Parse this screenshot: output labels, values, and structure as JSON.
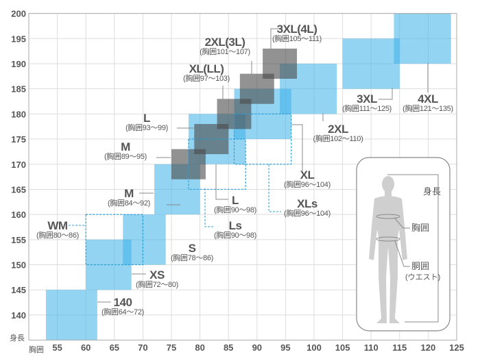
{
  "chart_data": {
    "type": "box-range",
    "xlabel": "胸囲",
    "ylabel": "身長",
    "xlim": [
      50,
      125
    ],
    "ylim": [
      135,
      200
    ],
    "x_ticks": [
      55,
      60,
      65,
      70,
      75,
      80,
      85,
      90,
      95,
      100,
      105,
      110,
      115,
      120,
      125
    ],
    "y_ticks": [
      140,
      145,
      150,
      155,
      160,
      165,
      170,
      175,
      180,
      185,
      190,
      195,
      200
    ],
    "grid": true,
    "colors": {
      "blue": "#3cb0ea",
      "gray": "#4a4a4a",
      "dashed": "#2a9fd6",
      "grid": "#dddddd"
    },
    "boxes": [
      {
        "id": "140",
        "style": "blue",
        "x": [
          53,
          62
        ],
        "y": [
          135,
          145
        ],
        "name": "140",
        "sub": "(胸囲64～72)"
      },
      {
        "id": "XS",
        "style": "blue",
        "x": [
          60,
          68
        ],
        "y": [
          145,
          155
        ],
        "name": "XS",
        "sub": "(胸囲72～80)"
      },
      {
        "id": "S",
        "style": "blue",
        "x": [
          66.5,
          74
        ],
        "y": [
          150,
          160
        ],
        "name": "S",
        "sub": "(胸囲78～86)"
      },
      {
        "id": "M",
        "style": "blue",
        "x": [
          72,
          80
        ],
        "y": [
          160,
          170
        ],
        "name": "M",
        "sub": "(胸囲84～92)"
      },
      {
        "id": "L",
        "style": "blue",
        "x": [
          78,
          88
        ],
        "y": [
          170,
          180
        ],
        "name": "L",
        "sub": "(胸囲90～98)"
      },
      {
        "id": "XL",
        "style": "blue",
        "x": [
          86,
          96
        ],
        "y": [
          175,
          185
        ],
        "name": "XL",
        "sub": "(胸囲96～104)"
      },
      {
        "id": "2XL",
        "style": "blue",
        "x": [
          94,
          104
        ],
        "y": [
          180,
          190
        ],
        "name": "2XL",
        "sub": "(胸囲102～110)"
      },
      {
        "id": "3XL",
        "style": "blue",
        "x": [
          105,
          115
        ],
        "y": [
          185,
          195
        ],
        "name": "3XL",
        "sub": "(胸囲111～125)"
      },
      {
        "id": "4XL",
        "style": "blue",
        "x": [
          114,
          124
        ],
        "y": [
          190,
          200
        ],
        "name": "4XL",
        "sub": "(胸囲121～135)"
      },
      {
        "id": "WM",
        "style": "dashed",
        "x": [
          60,
          70
        ],
        "y": [
          150,
          160
        ],
        "name": "WM",
        "sub": "(胸囲80～86)"
      },
      {
        "id": "Ls",
        "style": "dashed",
        "x": [
          78,
          88
        ],
        "y": [
          165,
          175
        ],
        "name": "Ls",
        "sub": "(胸囲90～98)"
      },
      {
        "id": "XLs",
        "style": "dashed",
        "x": [
          86,
          96
        ],
        "y": [
          170,
          180
        ],
        "name": "XLs",
        "sub": "(胸囲96～104)"
      },
      {
        "id": "jM",
        "style": "gray",
        "x": [
          75,
          81
        ],
        "y": [
          167,
          173
        ],
        "name": "M",
        "sub": "(胸囲89～95)"
      },
      {
        "id": "jL",
        "style": "gray",
        "x": [
          79,
          85
        ],
        "y": [
          172,
          178
        ],
        "name": "L",
        "sub": "(胸囲93～99)"
      },
      {
        "id": "jXL",
        "style": "gray",
        "x": [
          83,
          89
        ],
        "y": [
          177,
          183
        ],
        "name": "XL(LL)",
        "sub": "(胸囲97～103)"
      },
      {
        "id": "j2XL",
        "style": "gray",
        "x": [
          87,
          93
        ],
        "y": [
          182,
          188
        ],
        "name": "2XL(3L)",
        "sub": "(胸囲101～107)"
      },
      {
        "id": "j3XL",
        "style": "gray",
        "x": [
          91,
          97
        ],
        "y": [
          187,
          193
        ],
        "name": "3XL(4L)",
        "sub": "(胸囲105～111)"
      }
    ]
  },
  "figure": {
    "height_label": "身長",
    "chest_label": "胸囲",
    "waist_label": "胴囲",
    "waist_sub": "(ウエスト)"
  }
}
